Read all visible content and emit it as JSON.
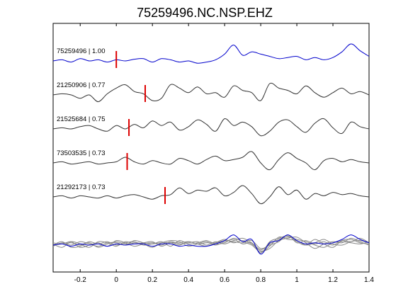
{
  "chart_data": {
    "type": "line",
    "title": "75259496.NC.NSP.EHZ",
    "xlabel": "",
    "ylabel": "",
    "xlim": [
      -0.35,
      1.4
    ],
    "x_ticks": [
      -0.2,
      0,
      0.2,
      0.4,
      0.6,
      0.8,
      1,
      1.2,
      1.4
    ],
    "x_tick_labels": [
      "-0.2",
      "0",
      "0.2",
      "0.4",
      "0.6",
      "0.8",
      "1",
      "1.2",
      "1.4"
    ],
    "grid": false,
    "legend": "none",
    "trace_color": "#333333",
    "primary_color": "#0000cc",
    "pick_color": "#dd0000",
    "stack_color": "#888888",
    "traces": [
      {
        "label": "75259496 | 1.00",
        "color": "#0000cc",
        "pick_time": 0.0,
        "x": [
          -0.35,
          -0.3,
          -0.25,
          -0.2,
          -0.15,
          -0.1,
          -0.05,
          0.0,
          0.05,
          0.1,
          0.15,
          0.2,
          0.25,
          0.3,
          0.35,
          0.4,
          0.45,
          0.5,
          0.55,
          0.6,
          0.65,
          0.7,
          0.75,
          0.8,
          0.85,
          0.9,
          0.95,
          1.0,
          1.05,
          1.1,
          1.15,
          1.2,
          1.25,
          1.3,
          1.35,
          1.4
        ],
        "y": [
          0.0,
          0.1,
          -0.1,
          0.2,
          0.0,
          0.1,
          -0.1,
          0.1,
          0.0,
          0.15,
          0.2,
          -0.1,
          0.2,
          0.1,
          -0.1,
          0.0,
          -0.2,
          -0.1,
          0.1,
          0.6,
          1.4,
          0.5,
          0.8,
          0.6,
          0.4,
          0.2,
          0.3,
          0.4,
          0.1,
          0.3,
          0.1,
          0.3,
          0.8,
          1.5,
          0.9,
          0.4
        ]
      },
      {
        "label": "21250906 | 0.77",
        "color": "#333333",
        "pick_time": 0.16,
        "x": [
          -0.35,
          -0.3,
          -0.25,
          -0.2,
          -0.15,
          -0.1,
          -0.05,
          0.0,
          0.05,
          0.1,
          0.15,
          0.2,
          0.25,
          0.3,
          0.35,
          0.4,
          0.45,
          0.5,
          0.55,
          0.6,
          0.65,
          0.7,
          0.75,
          0.8,
          0.85,
          0.9,
          0.95,
          1.0,
          1.05,
          1.1,
          1.15,
          1.2,
          1.25,
          1.3,
          1.35,
          1.4
        ],
        "y": [
          0.0,
          0.1,
          0.0,
          -0.3,
          0.0,
          -0.6,
          0.1,
          0.6,
          0.9,
          0.3,
          0.1,
          -0.5,
          -0.3,
          0.9,
          0.6,
          0.2,
          0.7,
          0.1,
          0.2,
          -0.2,
          0.8,
          0.4,
          0.2,
          -0.5,
          1.0,
          0.6,
          0.4,
          0.1,
          0.8,
          0.2,
          -0.2,
          0.2,
          0.6,
          0.1,
          0.3,
          0.0
        ]
      },
      {
        "label": "21525684 | 0.75",
        "color": "#333333",
        "pick_time": 0.07,
        "x": [
          -0.35,
          -0.3,
          -0.25,
          -0.2,
          -0.15,
          -0.1,
          -0.05,
          0.0,
          0.05,
          0.1,
          0.15,
          0.2,
          0.25,
          0.3,
          0.35,
          0.4,
          0.45,
          0.5,
          0.55,
          0.6,
          0.65,
          0.7,
          0.75,
          0.8,
          0.85,
          0.9,
          0.95,
          1.0,
          1.05,
          1.1,
          1.15,
          1.2,
          1.25,
          1.3,
          1.35,
          1.4
        ],
        "y": [
          0.0,
          0.1,
          0.0,
          0.2,
          0.3,
          0.0,
          -0.2,
          0.3,
          0.0,
          0.4,
          0.1,
          0.7,
          0.3,
          0.6,
          -0.1,
          0.2,
          0.8,
          0.4,
          -0.2,
          0.9,
          0.3,
          0.6,
          0.2,
          -0.6,
          -0.2,
          0.6,
          0.8,
          0.2,
          -0.3,
          0.5,
          0.9,
          0.1,
          -0.4,
          0.6,
          0.2,
          0.0
        ]
      },
      {
        "label": "73503535 | 0.73",
        "color": "#333333",
        "pick_time": 0.06,
        "x": [
          -0.35,
          -0.3,
          -0.25,
          -0.2,
          -0.15,
          -0.1,
          -0.05,
          0.0,
          0.05,
          0.1,
          0.15,
          0.2,
          0.25,
          0.3,
          0.35,
          0.4,
          0.45,
          0.5,
          0.55,
          0.6,
          0.65,
          0.7,
          0.75,
          0.8,
          0.85,
          0.9,
          0.95,
          1.0,
          1.05,
          1.1,
          1.15,
          1.2,
          1.25,
          1.3,
          1.35,
          1.4
        ],
        "y": [
          0.0,
          0.1,
          -0.1,
          0.0,
          0.1,
          -0.1,
          0.0,
          0.1,
          0.5,
          0.1,
          -0.1,
          0.2,
          0.0,
          -0.1,
          0.4,
          0.2,
          -0.1,
          0.3,
          0.6,
          0.2,
          0.3,
          0.5,
          1.0,
          0.0,
          -0.6,
          0.3,
          0.9,
          0.4,
          0.0,
          -0.6,
          0.2,
          0.4,
          0.1,
          0.3,
          0.1,
          0.0
        ]
      },
      {
        "label": "21292173 | 0.73",
        "color": "#333333",
        "pick_time": 0.27,
        "x": [
          -0.35,
          -0.3,
          -0.25,
          -0.2,
          -0.15,
          -0.1,
          -0.05,
          0.0,
          0.05,
          0.1,
          0.15,
          0.2,
          0.25,
          0.3,
          0.35,
          0.4,
          0.45,
          0.5,
          0.55,
          0.6,
          0.65,
          0.7,
          0.75,
          0.8,
          0.85,
          0.9,
          0.95,
          1.0,
          1.05,
          1.1,
          1.15,
          1.2,
          1.25,
          1.3,
          1.35,
          1.4
        ],
        "y": [
          0.0,
          0.1,
          -0.1,
          0.1,
          0.0,
          -0.1,
          0.1,
          -0.1,
          0.1,
          0.2,
          0.0,
          -0.2,
          0.1,
          0.2,
          0.8,
          0.3,
          0.6,
          0.5,
          0.8,
          0.1,
          0.4,
          1.0,
          0.3,
          -0.6,
          0.0,
          0.9,
          0.2,
          0.6,
          -0.2,
          0.3,
          0.1,
          0.4,
          0.2,
          0.3,
          0.1,
          0.0
        ]
      }
    ],
    "stack": {
      "x": [
        -0.35,
        -0.3,
        -0.25,
        -0.2,
        -0.15,
        -0.1,
        -0.05,
        0.0,
        0.05,
        0.1,
        0.15,
        0.2,
        0.25,
        0.3,
        0.35,
        0.4,
        0.45,
        0.5,
        0.55,
        0.6,
        0.65,
        0.7,
        0.75,
        0.8,
        0.85,
        0.9,
        0.95,
        1.0,
        1.05,
        1.1,
        1.15,
        1.2,
        1.25,
        1.3,
        1.35,
        1.4
      ],
      "series": [
        {
          "color": "#0000cc",
          "y": [
            0.0,
            0.1,
            -0.1,
            0.1,
            0.0,
            0.1,
            -0.1,
            0.1,
            0.0,
            0.1,
            0.1,
            -0.1,
            0.1,
            0.1,
            -0.1,
            0.0,
            -0.1,
            -0.1,
            0.1,
            0.4,
            0.9,
            0.3,
            0.5,
            -0.8,
            0.2,
            0.4,
            0.9,
            0.4,
            0.1,
            0.2,
            0.1,
            0.2,
            0.5,
            0.9,
            0.5,
            0.2
          ]
        },
        {
          "color": "#888888",
          "y": [
            0.0,
            0.3,
            -0.2,
            -0.1,
            0.2,
            -0.2,
            0.1,
            0.3,
            0.1,
            0.2,
            0.1,
            -0.2,
            0.2,
            0.4,
            0.3,
            -0.1,
            0.1,
            0.3,
            0.0,
            0.3,
            0.5,
            0.1,
            0.2,
            -0.7,
            0.3,
            0.6,
            0.8,
            0.3,
            0.0,
            0.5,
            0.1,
            -0.2,
            0.4,
            0.5,
            0.2,
            0.1
          ]
        },
        {
          "color": "#888888",
          "y": [
            0.1,
            -0.2,
            0.3,
            0.1,
            -0.2,
            0.3,
            0.2,
            -0.1,
            0.3,
            0.1,
            0.2,
            0.3,
            -0.1,
            0.2,
            0.2,
            0.3,
            0.1,
            -0.1,
            0.2,
            0.5,
            0.2,
            0.4,
            0.1,
            -0.5,
            -0.3,
            0.4,
            0.6,
            0.7,
            0.2,
            -0.3,
            0.1,
            0.3,
            0.2,
            0.6,
            0.3,
            0.0
          ]
        },
        {
          "color": "#888888",
          "y": [
            -0.1,
            0.2,
            0.0,
            0.3,
            0.1,
            -0.1,
            0.2,
            0.2,
            0.0,
            0.4,
            0.2,
            0.1,
            0.3,
            -0.1,
            0.4,
            0.1,
            0.2,
            0.4,
            0.1,
            0.2,
            0.6,
            0.3,
            0.0,
            -0.6,
            -0.1,
            0.7,
            0.5,
            0.4,
            0.0,
            0.2,
            0.5,
            0.1,
            0.0,
            0.3,
            0.4,
            0.2
          ]
        },
        {
          "color": "#888888",
          "y": [
            0.2,
            0.1,
            0.3,
            -0.2,
            0.0,
            0.2,
            -0.1,
            0.4,
            0.2,
            -0.1,
            0.1,
            0.2,
            0.0,
            0.3,
            0.1,
            0.2,
            0.3,
            0.0,
            0.3,
            0.1,
            0.4,
            0.6,
            0.2,
            -0.4,
            0.1,
            0.5,
            0.7,
            0.5,
            0.3,
            0.0,
            -0.2,
            0.2,
            0.3,
            0.2,
            0.1,
            0.3
          ]
        },
        {
          "color": "#888888",
          "y": [
            0.0,
            0.1,
            0.2,
            0.0,
            0.3,
            0.1,
            0.3,
            0.0,
            0.2,
            0.3,
            0.0,
            0.1,
            0.2,
            0.2,
            0.0,
            0.3,
            0.1,
            0.2,
            0.2,
            0.4,
            0.3,
            0.2,
            0.4,
            -0.3,
            0.0,
            0.3,
            0.9,
            0.2,
            0.4,
            0.1,
            0.3,
            0.0,
            0.4,
            0.3,
            0.6,
            0.2
          ]
        }
      ]
    }
  }
}
